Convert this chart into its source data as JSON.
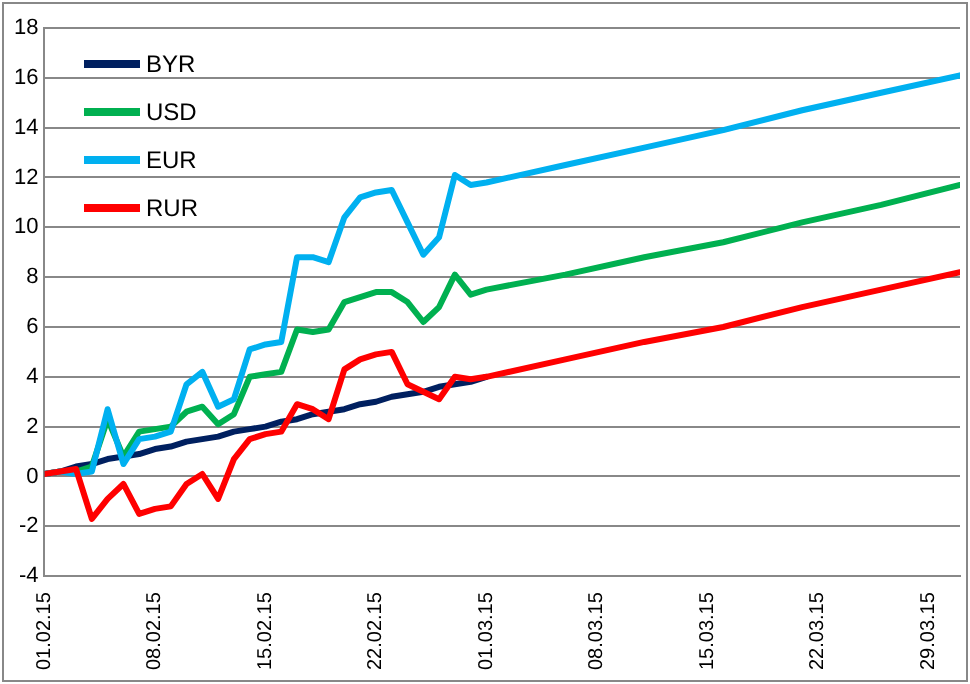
{
  "chart_data": {
    "type": "line",
    "x": [
      "--02-01",
      "--02-02",
      "--02-03",
      "--02-04",
      "--02-05",
      "--02-06",
      "--02-07",
      "--02-08",
      "--02-09",
      "--02-10",
      "--02-11",
      "--02-12",
      "--02-13",
      "--02-14",
      "--02-15",
      "--02-16",
      "--02-17",
      "--02-18",
      "--02-19",
      "--02-20",
      "--02-21",
      "--02-22",
      "--02-23",
      "--02-24",
      "--02-25",
      "--02-26",
      "--02-27",
      "--02-28",
      "--03-01",
      "--03-06",
      "--03-11",
      "--03-16",
      "--03-21",
      "--03-26",
      "--03-31"
    ],
    "series": [
      {
        "name": "BYR",
        "color": "#002060",
        "values": [
          0.1,
          0.2,
          0.4,
          0.5,
          0.7,
          0.8,
          0.9,
          1.1,
          1.2,
          1.4,
          1.5,
          1.6,
          1.8,
          1.9,
          2.0,
          2.2,
          2.3,
          2.5,
          2.6,
          2.7,
          2.9,
          3.0,
          3.2,
          3.3,
          3.4,
          3.6,
          3.7,
          3.8,
          4.0,
          null,
          null,
          null,
          null,
          null,
          null
        ]
      },
      {
        "name": "USD",
        "color": "#00b050",
        "values": [
          0.1,
          0.2,
          0.2,
          0.4,
          2.3,
          0.8,
          1.8,
          1.9,
          2.0,
          2.6,
          2.8,
          2.1,
          2.5,
          4.0,
          4.1,
          4.2,
          5.9,
          5.8,
          5.9,
          7.0,
          7.2,
          7.4,
          7.4,
          7.0,
          6.2,
          6.8,
          8.1,
          7.3,
          7.5,
          8.1,
          8.8,
          9.4,
          10.2,
          10.9,
          11.7
        ]
      },
      {
        "name": "EUR",
        "color": "#00b0f0",
        "values": [
          0.1,
          0.2,
          0.1,
          0.2,
          2.7,
          0.5,
          1.5,
          1.6,
          1.8,
          3.7,
          4.2,
          2.8,
          3.1,
          5.1,
          5.3,
          5.4,
          8.8,
          8.8,
          8.6,
          10.4,
          11.2,
          11.4,
          11.5,
          10.2,
          8.9,
          9.6,
          12.1,
          11.7,
          11.8,
          12.5,
          13.2,
          13.9,
          14.7,
          15.4,
          16.1
        ]
      },
      {
        "name": "RUR",
        "color": "#ff0000",
        "values": [
          0.1,
          0.2,
          0.3,
          -1.7,
          -0.9,
          -0.3,
          -1.5,
          -1.3,
          -1.2,
          -0.3,
          0.1,
          -0.9,
          0.7,
          1.5,
          1.7,
          1.8,
          2.9,
          2.7,
          2.3,
          4.3,
          4.7,
          4.9,
          5.0,
          3.7,
          3.4,
          3.1,
          4.0,
          3.9,
          4.0,
          4.7,
          5.4,
          6.0,
          6.8,
          7.5,
          8.2
        ]
      }
    ],
    "xlim": [
      "--02-01",
      "--03-31"
    ],
    "xticks": [
      {
        "value": "--02-01",
        "label": "01.02.15"
      },
      {
        "value": "--02-08",
        "label": "08.02.15"
      },
      {
        "value": "--02-15",
        "label": "15.02.15"
      },
      {
        "value": "--02-22",
        "label": "22.02.15"
      },
      {
        "value": "--03-01",
        "label": "01.03.15"
      },
      {
        "value": "--03-08",
        "label": "08.03.15"
      },
      {
        "value": "--03-15",
        "label": "15.03.15"
      },
      {
        "value": "--03-22",
        "label": "22.03.15"
      },
      {
        "value": "--03-29",
        "label": "29.03.15"
      }
    ],
    "ylim": [
      -4,
      18
    ],
    "yticks": [
      -4,
      -2,
      0,
      2,
      4,
      6,
      8,
      10,
      12,
      14,
      16,
      18
    ],
    "grid": "y",
    "legend": "top left",
    "marker": "none",
    "line_style": "solid"
  }
}
